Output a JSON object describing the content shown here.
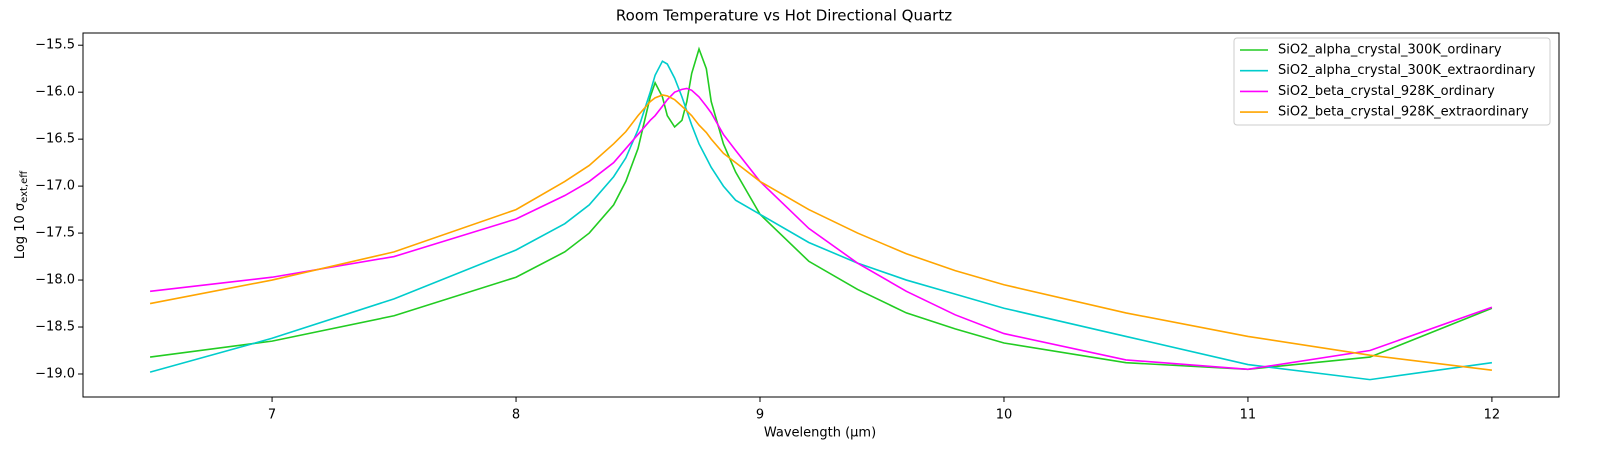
{
  "chart_data": {
    "type": "line",
    "title": "Room Temperature vs Hot Directional Quartz",
    "xlabel": "Wavelength (µm)",
    "ylabel": "Log 10 σ",
    "ylabel_sub": "ext,eff",
    "x": [
      6.5,
      7,
      7.5,
      8,
      8.2,
      8.3,
      8.4,
      8.45,
      8.5,
      8.55,
      8.57,
      8.6,
      8.62,
      8.65,
      8.68,
      8.7,
      8.72,
      8.75,
      8.78,
      8.8,
      8.85,
      8.9,
      9,
      9.2,
      9.4,
      9.6,
      9.8,
      10,
      10.5,
      11,
      11.5,
      12
    ],
    "series": [
      {
        "name": "SiO2_alpha_crystal_300K_ordinary",
        "color": "#22cc22",
        "values": [
          -18.82,
          -18.65,
          -18.38,
          -17.97,
          -17.7,
          -17.5,
          -17.2,
          -16.95,
          -16.6,
          -16.05,
          -15.9,
          -16.05,
          -16.25,
          -16.37,
          -16.3,
          -16.1,
          -15.8,
          -15.54,
          -15.75,
          -16.1,
          -16.55,
          -16.85,
          -17.3,
          -17.8,
          -18.1,
          -18.35,
          -18.52,
          -18.67,
          -18.88,
          -18.95,
          -18.82,
          -18.3
        ]
      },
      {
        "name": "SiO2_alpha_crystal_300K_extraordinary",
        "color": "#00cccc",
        "values": [
          -18.98,
          -18.62,
          -18.2,
          -17.68,
          -17.4,
          -17.2,
          -16.9,
          -16.7,
          -16.4,
          -16.0,
          -15.82,
          -15.67,
          -15.7,
          -15.85,
          -16.05,
          -16.2,
          -16.35,
          -16.55,
          -16.7,
          -16.8,
          -17.0,
          -17.15,
          -17.3,
          -17.6,
          -17.82,
          -18.0,
          -18.15,
          -18.3,
          -18.6,
          -18.9,
          -19.06,
          -18.88
        ]
      },
      {
        "name": "SiO2_beta_crystal_928K_ordinary",
        "color": "#ff00ff",
        "values": [
          -18.12,
          -17.97,
          -17.75,
          -17.35,
          -17.1,
          -16.95,
          -16.75,
          -16.6,
          -16.45,
          -16.3,
          -16.25,
          -16.15,
          -16.08,
          -16.0,
          -15.97,
          -15.96,
          -15.98,
          -16.05,
          -16.15,
          -16.22,
          -16.45,
          -16.62,
          -16.95,
          -17.45,
          -17.82,
          -18.12,
          -18.37,
          -18.57,
          -18.85,
          -18.95,
          -18.75,
          -18.29
        ]
      },
      {
        "name": "SiO2_beta_crystal_928K_extraordinary",
        "color": "#ffa500",
        "values": [
          -18.25,
          -18.0,
          -17.7,
          -17.25,
          -16.95,
          -16.78,
          -16.55,
          -16.42,
          -16.25,
          -16.1,
          -16.06,
          -16.03,
          -16.04,
          -16.08,
          -16.15,
          -16.2,
          -16.25,
          -16.35,
          -16.43,
          -16.5,
          -16.65,
          -16.75,
          -16.95,
          -17.25,
          -17.5,
          -17.72,
          -17.9,
          -18.05,
          -18.35,
          -18.6,
          -18.8,
          -18.96
        ]
      }
    ],
    "xlim": [
      6.225,
      12.275
    ],
    "ylim": [
      -19.245,
      -15.37
    ],
    "xticks": [
      7,
      8,
      9,
      10,
      11,
      12
    ],
    "yticks": [
      {
        "value": -15.5,
        "label": "−15.5"
      },
      {
        "value": -16,
        "label": "−16.0"
      },
      {
        "value": -16.5,
        "label": "−16.5"
      },
      {
        "value": -17,
        "label": "−17.0"
      },
      {
        "value": -17.5,
        "label": "−17.5"
      },
      {
        "value": -18,
        "label": "−18.0"
      },
      {
        "value": -18.5,
        "label": "−18.5"
      },
      {
        "value": -19,
        "label": "−19.0"
      }
    ],
    "grid": false,
    "legend": "upper right"
  }
}
